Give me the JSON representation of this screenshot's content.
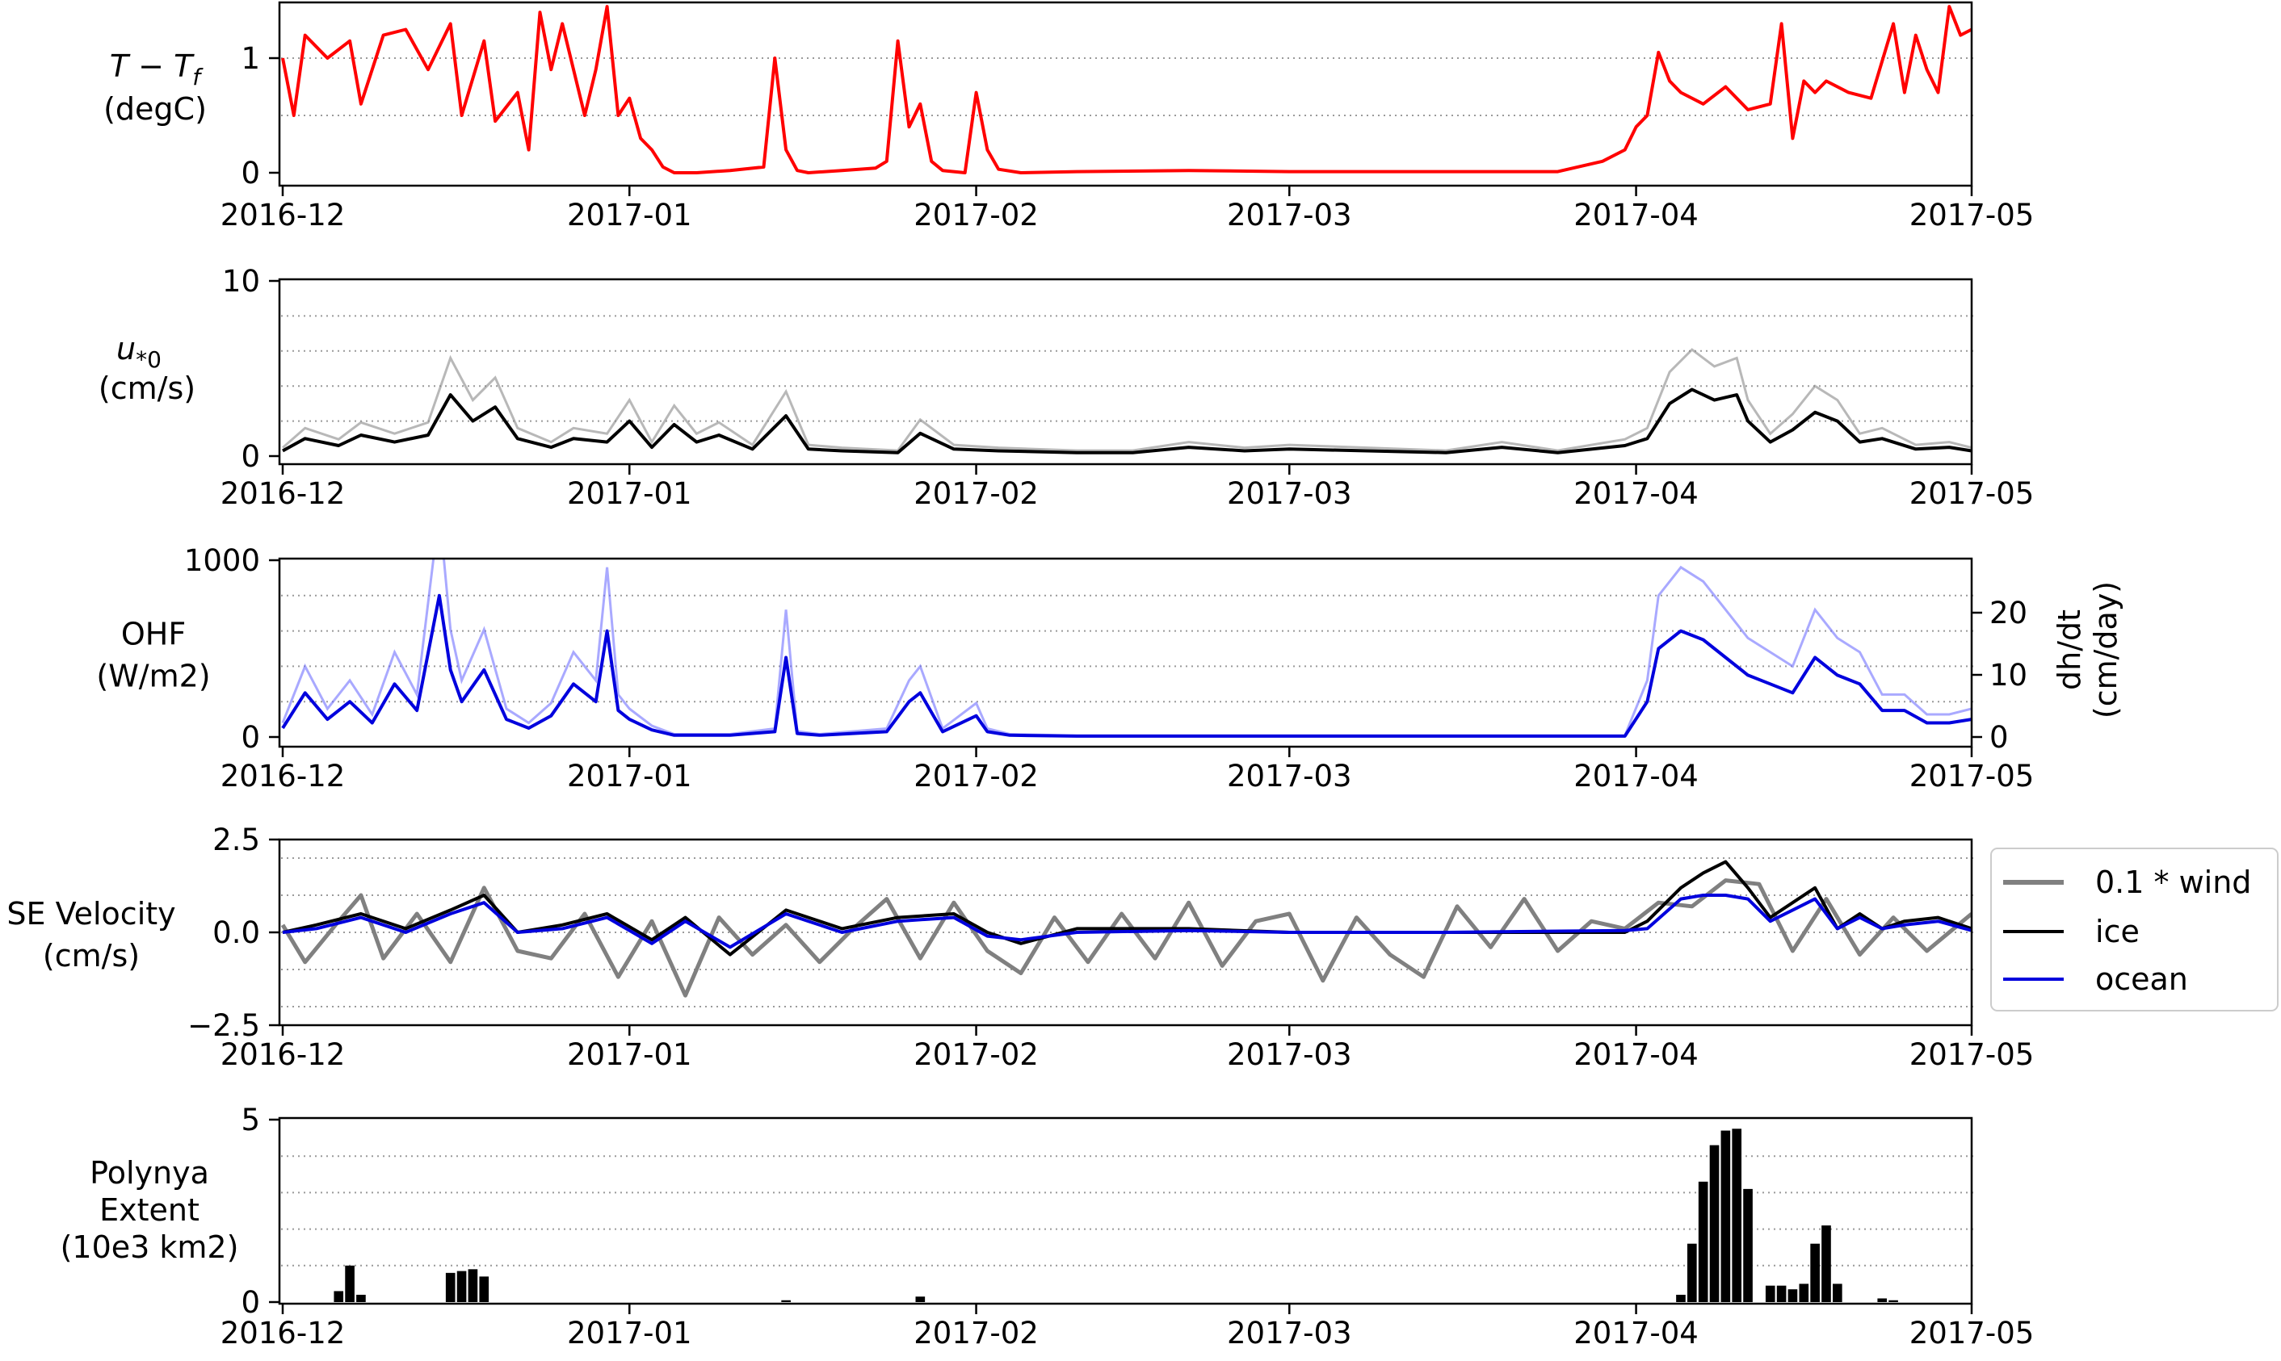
{
  "x_ticks": [
    "2016-12",
    "2017-01",
    "2017-02",
    "2017-03",
    "2017-04",
    "2017-05"
  ],
  "chart_data": [
    {
      "type": "line",
      "ylabel_math": "T − T_f",
      "ylabel_sub": "f",
      "ylabel_unit": "(degC)",
      "ylim": [
        0,
        1.45
      ],
      "yticks": [
        {
          "v": 0,
          "label": "0"
        },
        {
          "v": 1,
          "label": "1"
        }
      ],
      "grid_y": [
        0.5,
        1.0
      ],
      "color": "#ff0000",
      "series": [
        {
          "x": [
            "2016-12-01",
            "2016-12-02",
            "2016-12-03",
            "2016-12-05",
            "2016-12-07",
            "2016-12-08",
            "2016-12-10",
            "2016-12-12",
            "2016-12-14",
            "2016-12-16",
            "2016-12-17",
            "2016-12-19",
            "2016-12-20",
            "2016-12-22",
            "2016-12-23",
            "2016-12-24",
            "2016-12-25",
            "2016-12-26",
            "2016-12-28",
            "2016-12-29",
            "2016-12-30",
            "2016-12-31",
            "2017-01-01",
            "2017-01-02",
            "2017-01-03",
            "2017-01-04",
            "2017-01-05",
            "2017-01-07",
            "2017-01-10",
            "2017-01-13",
            "2017-01-14",
            "2017-01-15",
            "2017-01-16",
            "2017-01-17",
            "2017-01-20",
            "2017-01-23",
            "2017-01-24",
            "2017-01-25",
            "2017-01-26",
            "2017-01-27",
            "2017-01-28",
            "2017-01-29",
            "2017-01-31",
            "2017-02-01",
            "2017-02-02",
            "2017-02-03",
            "2017-02-05",
            "2017-02-10",
            "2017-02-20",
            "2017-03-01",
            "2017-03-15",
            "2017-03-25",
            "2017-03-29",
            "2017-03-31",
            "2017-04-01",
            "2017-04-02",
            "2017-04-03",
            "2017-04-04",
            "2017-04-05",
            "2017-04-07",
            "2017-04-09",
            "2017-04-11",
            "2017-04-13",
            "2017-04-14",
            "2017-04-15",
            "2017-04-16",
            "2017-04-17",
            "2017-04-18",
            "2017-04-20",
            "2017-04-22",
            "2017-04-24",
            "2017-04-25",
            "2017-04-26",
            "2017-04-27",
            "2017-04-28",
            "2017-04-29",
            "2017-04-30",
            "2017-05-01"
          ],
          "values": [
            1.0,
            0.5,
            1.2,
            1.0,
            1.15,
            0.6,
            1.2,
            1.25,
            0.9,
            1.3,
            0.5,
            1.15,
            0.45,
            0.7,
            0.2,
            1.4,
            0.9,
            1.3,
            0.5,
            0.9,
            1.45,
            0.5,
            0.65,
            0.3,
            0.2,
            0.05,
            0.0,
            0.0,
            0.02,
            0.05,
            1.0,
            0.2,
            0.02,
            0.0,
            0.02,
            0.04,
            0.1,
            1.15,
            0.4,
            0.6,
            0.1,
            0.02,
            0.0,
            0.7,
            0.2,
            0.03,
            0.0,
            0.01,
            0.02,
            0.01,
            0.01,
            0.01,
            0.1,
            0.2,
            0.4,
            0.5,
            1.05,
            0.8,
            0.7,
            0.6,
            0.75,
            0.55,
            0.6,
            1.3,
            0.3,
            0.8,
            0.7,
            0.8,
            0.7,
            0.65,
            1.3,
            0.7,
            1.2,
            0.9,
            0.7,
            1.45,
            1.2,
            1.25
          ]
        }
      ]
    },
    {
      "type": "line",
      "ylabel_math": "u*0",
      "ylabel_main": "u",
      "ylabel_sub": "*0",
      "ylabel_unit": "(cm/s)",
      "ylim": [
        0,
        10
      ],
      "yticks": [
        {
          "v": 0,
          "label": "0"
        },
        {
          "v": 10,
          "label": "10"
        }
      ],
      "grid_y": [
        2,
        4,
        6,
        8
      ],
      "color": "#000000",
      "band_color": "#888888",
      "series": [
        {
          "x": [
            "2016-12-01",
            "2016-12-03",
            "2016-12-06",
            "2016-12-08",
            "2016-12-11",
            "2016-12-14",
            "2016-12-16",
            "2016-12-18",
            "2016-12-20",
            "2016-12-22",
            "2016-12-25",
            "2016-12-27",
            "2016-12-30",
            "2017-01-01",
            "2017-01-03",
            "2017-01-05",
            "2017-01-07",
            "2017-01-09",
            "2017-01-12",
            "2017-01-15",
            "2017-01-17",
            "2017-01-20",
            "2017-01-25",
            "2017-01-27",
            "2017-01-30",
            "2017-02-03",
            "2017-02-10",
            "2017-02-15",
            "2017-02-20",
            "2017-02-25",
            "2017-03-01",
            "2017-03-08",
            "2017-03-15",
            "2017-03-20",
            "2017-03-25",
            "2017-03-31",
            "2017-04-02",
            "2017-04-04",
            "2017-04-06",
            "2017-04-08",
            "2017-04-10",
            "2017-04-11",
            "2017-04-13",
            "2017-04-15",
            "2017-04-17",
            "2017-04-19",
            "2017-04-21",
            "2017-04-23",
            "2017-04-26",
            "2017-04-29",
            "2017-05-01"
          ],
          "values": [
            0.3,
            1.0,
            0.6,
            1.2,
            0.8,
            1.2,
            3.5,
            2.0,
            2.8,
            1.0,
            0.5,
            1.0,
            0.8,
            2.0,
            0.5,
            1.8,
            0.8,
            1.2,
            0.4,
            2.3,
            0.4,
            0.3,
            0.2,
            1.3,
            0.4,
            0.3,
            0.2,
            0.2,
            0.5,
            0.3,
            0.4,
            0.3,
            0.2,
            0.5,
            0.2,
            0.6,
            1.0,
            3.0,
            3.8,
            3.2,
            3.5,
            2.0,
            0.8,
            1.5,
            2.5,
            2.0,
            0.8,
            1.0,
            0.4,
            0.5,
            0.3
          ]
        }
      ]
    },
    {
      "type": "line",
      "ylabel_main": "OHF",
      "ylabel_unit": "(W/m2)",
      "right_ylabel": "dh/dt",
      "right_ylabel_unit": "(cm/day)",
      "ylim": [
        0,
        1000
      ],
      "yticks": [
        {
          "v": 0,
          "label": "0"
        },
        {
          "v": 1000,
          "label": "1000"
        }
      ],
      "right_ylim": [
        0,
        28
      ],
      "right_yticks": [
        {
          "v": 0,
          "label": "0"
        },
        {
          "v": 10,
          "label": "10"
        },
        {
          "v": 20,
          "label": "20"
        }
      ],
      "grid_y": [
        200,
        400,
        600,
        800
      ],
      "color": "#0000dd",
      "band_color": "#7070ff",
      "series": [
        {
          "x": [
            "2016-12-01",
            "2016-12-03",
            "2016-12-05",
            "2016-12-07",
            "2016-12-09",
            "2016-12-11",
            "2016-12-13",
            "2016-12-15",
            "2016-12-16",
            "2016-12-17",
            "2016-12-19",
            "2016-12-21",
            "2016-12-23",
            "2016-12-25",
            "2016-12-27",
            "2016-12-29",
            "2016-12-30",
            "2016-12-31",
            "2017-01-01",
            "2017-01-03",
            "2017-01-05",
            "2017-01-10",
            "2017-01-14",
            "2017-01-15",
            "2017-01-16",
            "2017-01-18",
            "2017-01-24",
            "2017-01-26",
            "2017-01-27",
            "2017-01-29",
            "2017-02-01",
            "2017-02-02",
            "2017-02-04",
            "2017-02-10",
            "2017-03-01",
            "2017-03-31",
            "2017-04-02",
            "2017-04-03",
            "2017-04-05",
            "2017-04-07",
            "2017-04-09",
            "2017-04-11",
            "2017-04-13",
            "2017-04-15",
            "2017-04-17",
            "2017-04-19",
            "2017-04-21",
            "2017-04-23",
            "2017-04-25",
            "2017-04-27",
            "2017-04-29",
            "2017-05-01"
          ],
          "values": [
            50,
            250,
            100,
            200,
            80,
            300,
            150,
            800,
            380,
            200,
            380,
            100,
            50,
            120,
            300,
            200,
            600,
            150,
            100,
            40,
            10,
            10,
            30,
            450,
            20,
            10,
            30,
            200,
            250,
            30,
            120,
            30,
            10,
            5,
            5,
            5,
            200,
            500,
            600,
            550,
            450,
            350,
            300,
            250,
            450,
            350,
            300,
            150,
            150,
            80,
            80,
            100
          ]
        }
      ]
    },
    {
      "type": "line",
      "ylabel_main": "SE Velocity",
      "ylabel_unit": "(cm/s)",
      "ylim": [
        -2.5,
        2.5
      ],
      "yticks": [
        {
          "v": -2.5,
          "label": "−2.5"
        },
        {
          "v": 0,
          "label": "0.0"
        },
        {
          "v": 2.5,
          "label": "2.5"
        }
      ],
      "grid_y": [
        -2,
        -1,
        0,
        1,
        2
      ],
      "legend_position": "right",
      "series": [
        {
          "name": "0.1 * wind",
          "color": "#808080",
          "x": [
            "2016-12-01",
            "2016-12-03",
            "2016-12-06",
            "2016-12-08",
            "2016-12-10",
            "2016-12-13",
            "2016-12-16",
            "2016-12-19",
            "2016-12-22",
            "2016-12-25",
            "2016-12-28",
            "2016-12-31",
            "2017-01-03",
            "2017-01-06",
            "2017-01-09",
            "2017-01-12",
            "2017-01-15",
            "2017-01-18",
            "2017-01-21",
            "2017-01-24",
            "2017-01-27",
            "2017-01-30",
            "2017-02-02",
            "2017-02-05",
            "2017-02-08",
            "2017-02-11",
            "2017-02-14",
            "2017-02-17",
            "2017-02-20",
            "2017-02-23",
            "2017-02-26",
            "2017-03-01",
            "2017-03-04",
            "2017-03-07",
            "2017-03-10",
            "2017-03-13",
            "2017-03-16",
            "2017-03-19",
            "2017-03-22",
            "2017-03-25",
            "2017-03-28",
            "2017-03-31",
            "2017-04-03",
            "2017-04-06",
            "2017-04-09",
            "2017-04-12",
            "2017-04-15",
            "2017-04-18",
            "2017-04-21",
            "2017-04-24",
            "2017-04-27",
            "2017-05-01"
          ],
          "values": [
            0.2,
            -0.8,
            0.3,
            1.0,
            -0.7,
            0.5,
            -0.8,
            1.2,
            -0.5,
            -0.7,
            0.5,
            -1.2,
            0.3,
            -1.7,
            0.4,
            -0.6,
            0.2,
            -0.8,
            0.1,
            0.9,
            -0.7,
            0.8,
            -0.5,
            -1.1,
            0.4,
            -0.8,
            0.5,
            -0.7,
            0.8,
            -0.9,
            0.3,
            0.5,
            -1.3,
            0.4,
            -0.6,
            -1.2,
            0.7,
            -0.4,
            0.9,
            -0.5,
            0.3,
            0.1,
            0.8,
            0.7,
            1.4,
            1.3,
            -0.5,
            0.9,
            -0.6,
            0.4,
            -0.5,
            0.5
          ]
        },
        {
          "name": "ice",
          "color": "#000000",
          "x": [
            "2016-12-01",
            "2016-12-04",
            "2016-12-08",
            "2016-12-12",
            "2016-12-16",
            "2016-12-19",
            "2016-12-22",
            "2016-12-26",
            "2016-12-30",
            "2017-01-03",
            "2017-01-06",
            "2017-01-10",
            "2017-01-15",
            "2017-01-20",
            "2017-01-25",
            "2017-01-30",
            "2017-02-02",
            "2017-02-05",
            "2017-02-10",
            "2017-02-20",
            "2017-03-01",
            "2017-03-15",
            "2017-03-31",
            "2017-04-02",
            "2017-04-05",
            "2017-04-07",
            "2017-04-09",
            "2017-04-11",
            "2017-04-13",
            "2017-04-15",
            "2017-04-17",
            "2017-04-19",
            "2017-04-21",
            "2017-04-23",
            "2017-04-25",
            "2017-04-28",
            "2017-05-01"
          ],
          "values": [
            0.0,
            0.2,
            0.5,
            0.1,
            0.6,
            1.0,
            0.0,
            0.2,
            0.5,
            -0.2,
            0.4,
            -0.6,
            0.6,
            0.1,
            0.4,
            0.5,
            0.0,
            -0.3,
            0.1,
            0.1,
            0.0,
            0.0,
            0.0,
            0.3,
            1.2,
            1.6,
            1.9,
            1.2,
            0.4,
            0.8,
            1.2,
            0.1,
            0.5,
            0.1,
            0.3,
            0.4,
            0.1
          ]
        },
        {
          "name": "ocean",
          "color": "#0000dd",
          "x": [
            "2016-12-01",
            "2016-12-04",
            "2016-12-08",
            "2016-12-12",
            "2016-12-16",
            "2016-12-19",
            "2016-12-22",
            "2016-12-26",
            "2016-12-30",
            "2017-01-03",
            "2017-01-06",
            "2017-01-10",
            "2017-01-15",
            "2017-01-20",
            "2017-01-25",
            "2017-01-30",
            "2017-02-02",
            "2017-02-05",
            "2017-02-10",
            "2017-02-20",
            "2017-03-01",
            "2017-03-15",
            "2017-03-31",
            "2017-04-02",
            "2017-04-05",
            "2017-04-07",
            "2017-04-09",
            "2017-04-11",
            "2017-04-13",
            "2017-04-15",
            "2017-04-17",
            "2017-04-19",
            "2017-04-21",
            "2017-04-23",
            "2017-04-25",
            "2017-04-28",
            "2017-05-01"
          ],
          "values": [
            0.0,
            0.1,
            0.4,
            0.0,
            0.5,
            0.8,
            0.0,
            0.1,
            0.4,
            -0.3,
            0.3,
            -0.4,
            0.5,
            0.0,
            0.3,
            0.4,
            -0.1,
            -0.2,
            0.0,
            0.05,
            0.0,
            0.0,
            0.05,
            0.1,
            0.9,
            1.0,
            1.0,
            0.9,
            0.3,
            0.6,
            0.9,
            0.1,
            0.4,
            0.1,
            0.2,
            0.3,
            0.05
          ]
        }
      ]
    },
    {
      "type": "bar",
      "ylabel_lines": [
        "Polynya",
        "Extent",
        "(10e3 km2)"
      ],
      "ylim": [
        0,
        5
      ],
      "yticks": [
        {
          "v": 0,
          "label": "0"
        },
        {
          "v": 5,
          "label": "5"
        }
      ],
      "grid_y": [
        1,
        2,
        3,
        4
      ],
      "color": "#000000",
      "series": [
        {
          "x": [
            "2016-12-06",
            "2016-12-07",
            "2016-12-08",
            "2016-12-16",
            "2016-12-17",
            "2016-12-18",
            "2016-12-19",
            "2017-01-15",
            "2017-01-27",
            "2017-04-05",
            "2017-04-06",
            "2017-04-07",
            "2017-04-08",
            "2017-04-09",
            "2017-04-10",
            "2017-04-11",
            "2017-04-13",
            "2017-04-14",
            "2017-04-15",
            "2017-04-16",
            "2017-04-17",
            "2017-04-18",
            "2017-04-19",
            "2017-04-23",
            "2017-04-24"
          ],
          "values": [
            0.3,
            1.0,
            0.2,
            0.8,
            0.85,
            0.9,
            0.7,
            0.05,
            0.15,
            0.2,
            1.6,
            3.3,
            4.3,
            4.7,
            4.75,
            3.1,
            0.45,
            0.45,
            0.35,
            0.5,
            1.6,
            2.1,
            0.5,
            0.1,
            0.05
          ]
        }
      ]
    }
  ]
}
